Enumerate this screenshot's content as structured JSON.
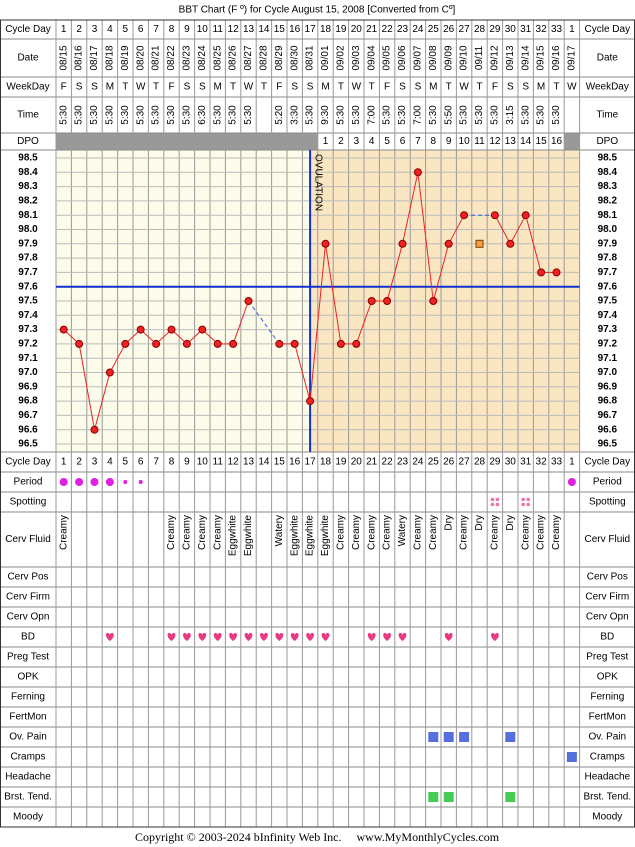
{
  "title": "BBT Chart (F º) for Cycle August 15, 2008  [Converted from Cº]",
  "cycle_day_label": "Cycle Day",
  "cycle_days": [
    1,
    2,
    3,
    4,
    5,
    6,
    7,
    8,
    9,
    10,
    11,
    12,
    13,
    14,
    15,
    16,
    17,
    18,
    19,
    20,
    21,
    22,
    23,
    24,
    25,
    26,
    27,
    28,
    29,
    30,
    31,
    32,
    33,
    1
  ],
  "date_label": "Date",
  "dates": [
    "08/15",
    "08/16",
    "08/17",
    "08/18",
    "08/19",
    "08/20",
    "08/21",
    "08/22",
    "08/23",
    "08/24",
    "08/25",
    "08/26",
    "08/27",
    "08/28",
    "08/29",
    "08/30",
    "08/31",
    "09/01",
    "09/02",
    "09/03",
    "09/04",
    "09/05",
    "09/06",
    "09/07",
    "09/08",
    "09/09",
    "09/10",
    "09/11",
    "09/12",
    "09/13",
    "09/14",
    "09/15",
    "09/16",
    "09/17"
  ],
  "weekday_label": "WeekDay",
  "weekdays": [
    "F",
    "S",
    "S",
    "M",
    "T",
    "W",
    "T",
    "F",
    "S",
    "S",
    "M",
    "T",
    "W",
    "T",
    "F",
    "S",
    "S",
    "M",
    "T",
    "W",
    "T",
    "F",
    "S",
    "S",
    "M",
    "T",
    "W",
    "T",
    "F",
    "S",
    "S",
    "M",
    "T",
    "W"
  ],
  "time_label": "Time",
  "times": [
    "5:30",
    "5:30",
    "5:30",
    "5:30",
    "5:30",
    "5:30",
    "5:30",
    "5:30",
    "5:30",
    "6:30",
    "5:30",
    "5:30",
    "5:30",
    null,
    "5:20",
    "3:30",
    "5:30",
    "9:30",
    "5:30",
    "5:30",
    "7:00",
    "5:30",
    "5:30",
    "7:00",
    "5:30",
    "5:50",
    "5:30",
    "5:30",
    "5:30",
    "3:15",
    "5:30",
    "5:30",
    "5:30",
    null
  ],
  "dpo_label": "DPO",
  "dpo": [
    null,
    null,
    null,
    null,
    null,
    null,
    null,
    null,
    null,
    null,
    null,
    null,
    null,
    null,
    null,
    null,
    null,
    1,
    2,
    3,
    4,
    5,
    6,
    7,
    8,
    9,
    10,
    11,
    12,
    13,
    14,
    15,
    16,
    null
  ],
  "chart_data": {
    "type": "line",
    "values": [
      97.3,
      97.2,
      96.6,
      97.0,
      97.2,
      97.3,
      97.2,
      97.3,
      97.2,
      97.3,
      97.2,
      97.2,
      97.5,
      null,
      97.2,
      97.2,
      96.8,
      97.9,
      97.2,
      97.2,
      97.5,
      97.5,
      97.9,
      98.4,
      97.5,
      97.9,
      98.1,
      null,
      98.1,
      97.9,
      98.1,
      97.7,
      97.7,
      null
    ],
    "excluded_values": [
      null,
      null,
      null,
      null,
      null,
      null,
      null,
      null,
      null,
      null,
      null,
      null,
      null,
      null,
      null,
      null,
      null,
      null,
      null,
      null,
      null,
      null,
      null,
      null,
      null,
      null,
      null,
      97.9,
      null,
      null,
      null,
      null,
      null,
      null
    ],
    "ylim": [
      96.5,
      98.5
    ],
    "yticks": [
      96.5,
      96.6,
      96.7,
      96.8,
      96.9,
      {
        "value": 97,
        "label": "97.0"
      },
      97.1,
      97.2,
      97.3,
      97.4,
      97.5,
      97.6,
      97.7,
      97.8,
      97.9,
      {
        "value": 98,
        "label": "98.0"
      },
      98.1,
      98.2,
      98.3,
      98.4,
      98.5
    ],
    "coverline": 97.6,
    "ovulation_day": 17,
    "annotation": "OVULATION",
    "color": "#ee2222",
    "excluded_color": "#f0a040",
    "grid": true
  },
  "symptoms": [
    {
      "label": "Period",
      "values": [
        2,
        2,
        2,
        2,
        1,
        1,
        null,
        null,
        null,
        null,
        null,
        null,
        null,
        null,
        null,
        null,
        null,
        null,
        null,
        null,
        null,
        null,
        null,
        null,
        null,
        null,
        null,
        null,
        null,
        null,
        null,
        null,
        null,
        2
      ]
    },
    {
      "label": "Spotting",
      "values": [
        null,
        null,
        null,
        null,
        null,
        null,
        null,
        null,
        null,
        null,
        null,
        null,
        null,
        null,
        null,
        null,
        null,
        null,
        null,
        null,
        null,
        null,
        null,
        null,
        null,
        null,
        null,
        null,
        1,
        null,
        1,
        null,
        null,
        null
      ]
    },
    {
      "label": "Cerv Fluid",
      "texts": [
        "Creamy",
        null,
        null,
        null,
        null,
        null,
        null,
        "Creamy",
        "Creamy",
        "Creamy",
        "Creamy",
        "Eggwhite",
        "Eggwhite",
        null,
        "Watery",
        "Eggwhite",
        "Eggwhite",
        "Eggwhite",
        "Creamy",
        "Creamy",
        "Creamy",
        "Creamy",
        "Watery",
        "Creamy",
        "Creamy",
        "Dry",
        "Creamy",
        "Dry",
        "Creamy",
        "Dry",
        "Creamy",
        "Creamy",
        "Creamy",
        null
      ]
    },
    {
      "label": "Cerv Pos"
    },
    {
      "label": "Cerv Firm"
    },
    {
      "label": "Cerv Opn"
    },
    {
      "label": "BD",
      "values": [
        null,
        null,
        null,
        1,
        null,
        null,
        null,
        1,
        1,
        1,
        1,
        1,
        1,
        1,
        1,
        1,
        1,
        1,
        null,
        null,
        1,
        1,
        1,
        null,
        null,
        1,
        null,
        null,
        1,
        null,
        null,
        null,
        null,
        null
      ]
    },
    {
      "label": "Preg Test"
    },
    {
      "label": "OPK"
    },
    {
      "label": "Ferning"
    },
    {
      "label": "FertMon"
    },
    {
      "label": "Ov. Pain",
      "values": [
        null,
        null,
        null,
        null,
        null,
        null,
        null,
        null,
        null,
        null,
        null,
        null,
        null,
        null,
        null,
        null,
        null,
        null,
        null,
        null,
        null,
        null,
        null,
        null,
        1,
        1,
        1,
        null,
        null,
        1,
        null,
        null,
        null,
        null
      ]
    },
    {
      "label": "Cramps",
      "values": [
        null,
        null,
        null,
        null,
        null,
        null,
        null,
        null,
        null,
        null,
        null,
        null,
        null,
        null,
        null,
        null,
        null,
        null,
        null,
        null,
        null,
        null,
        null,
        null,
        null,
        null,
        null,
        null,
        null,
        null,
        null,
        null,
        null,
        1
      ]
    },
    {
      "label": "Headache"
    },
    {
      "label": "Brst. Tend.",
      "values": [
        null,
        null,
        null,
        null,
        null,
        null,
        null,
        null,
        null,
        null,
        null,
        null,
        null,
        null,
        null,
        null,
        null,
        null,
        null,
        null,
        null,
        null,
        null,
        null,
        1,
        1,
        null,
        null,
        null,
        1,
        null,
        null,
        null,
        null
      ]
    },
    {
      "label": "Moody"
    }
  ],
  "copyright": "Copyright © 2003-2024 bInfinity Web Inc.     www.MyMonthlyCycles.com"
}
